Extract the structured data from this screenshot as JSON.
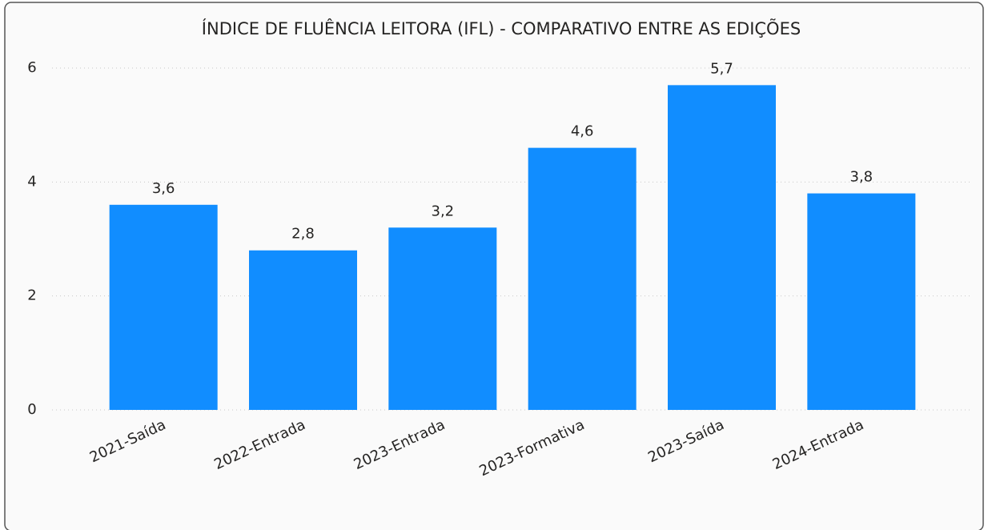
{
  "chart_data": {
    "type": "bar",
    "title": "ÍNDICE DE FLUÊNCIA LEITORA (IFL) - COMPARATIVO ENTRE AS EDIÇÕES",
    "categories": [
      "2021-Saída",
      "2022-Entrada",
      "2023-Entrada",
      "2023-Formativa",
      "2023-Saída",
      "2024-Entrada"
    ],
    "values": [
      3.6,
      2.8,
      3.2,
      4.6,
      5.7,
      3.8
    ],
    "value_labels": [
      "3,6",
      "2,8",
      "3,2",
      "4,6",
      "5,7",
      "3,8"
    ],
    "color": "#118dff",
    "ylim": [
      0,
      6
    ],
    "yticks": [
      0,
      2,
      4,
      6
    ],
    "grid": true
  }
}
